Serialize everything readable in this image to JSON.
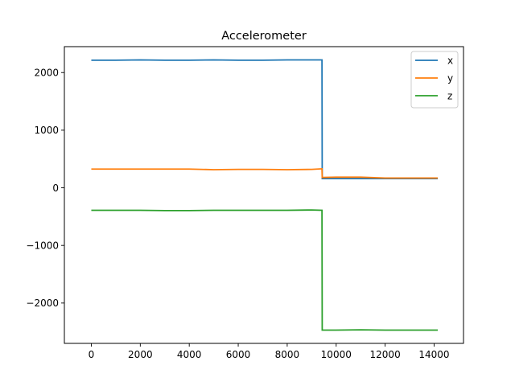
{
  "chart_data": {
    "type": "line",
    "title": "Accelerometer",
    "xlabel": "",
    "ylabel": "",
    "xlim": [
      -1100,
      15200
    ],
    "ylim": [
      -2700,
      2450
    ],
    "x_ticks": [
      0,
      2000,
      4000,
      6000,
      8000,
      10000,
      12000,
      14000
    ],
    "y_ticks": [
      -2000,
      -1000,
      0,
      1000,
      2000
    ],
    "y_tick_labels": [
      "−2000",
      "−1000",
      "0",
      "1000",
      "2000"
    ],
    "grid": false,
    "legend": "top-right",
    "series": [
      {
        "name": "x",
        "color": "#1f77b4",
        "x": [
          0,
          1000,
          2000,
          3000,
          4000,
          5000,
          6000,
          7000,
          8000,
          9000,
          9420,
          9430,
          10000,
          11000,
          12000,
          13000,
          14150
        ],
        "y": [
          2215,
          2215,
          2220,
          2215,
          2215,
          2220,
          2215,
          2215,
          2220,
          2220,
          2220,
          160,
          160,
          160,
          160,
          160,
          160
        ]
      },
      {
        "name": "y",
        "color": "#ff7f0e",
        "x": [
          0,
          1000,
          2000,
          3000,
          4000,
          5000,
          6000,
          7000,
          8000,
          9000,
          9420,
          9430,
          10000,
          11000,
          12000,
          13000,
          14150
        ],
        "y": [
          325,
          325,
          325,
          325,
          325,
          315,
          320,
          320,
          315,
          320,
          330,
          180,
          185,
          185,
          170,
          170,
          170
        ]
      },
      {
        "name": "z",
        "color": "#2ca02c",
        "x": [
          0,
          1000,
          2000,
          3000,
          4000,
          5000,
          6000,
          7000,
          8000,
          9000,
          9420,
          9430,
          10000,
          11000,
          12000,
          13000,
          14150
        ],
        "y": [
          -390,
          -390,
          -390,
          -395,
          -395,
          -390,
          -390,
          -390,
          -390,
          -385,
          -390,
          -2470,
          -2470,
          -2465,
          -2470,
          -2470,
          -2470
        ]
      }
    ]
  }
}
